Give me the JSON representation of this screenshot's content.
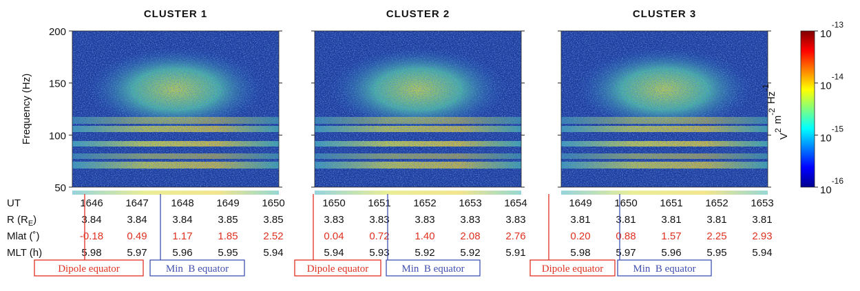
{
  "panels": [
    {
      "title": "CLUSTER 1",
      "ut": [
        1646,
        1647,
        1648,
        1649,
        1650
      ],
      "r": [
        "3.84",
        "3.84",
        "3.84",
        "3.85",
        "3.85"
      ],
      "mlat": [
        "-0.18",
        "0.49",
        "1.17",
        "1.85",
        "2.52"
      ],
      "mlt": [
        "5.98",
        "5.97",
        "5.96",
        "5.95",
        "5.94"
      ]
    },
    {
      "title": "CLUSTER 2",
      "ut": [
        1650,
        1651,
        1652,
        1653,
        1654
      ],
      "r": [
        "3.83",
        "3.83",
        "3.83",
        "3.83",
        "3.83"
      ],
      "mlat": [
        "0.04",
        "0.72",
        "1.40",
        "2.08",
        "2.76"
      ],
      "mlt": [
        "5.94",
        "5.93",
        "5.92",
        "5.92",
        "5.91"
      ]
    },
    {
      "title": "CLUSTER 3",
      "ut": [
        1649,
        1650,
        1651,
        1652,
        1653
      ],
      "r": [
        "3.81",
        "3.81",
        "3.81",
        "3.81",
        "3.81"
      ],
      "mlat": [
        "0.20",
        "0.88",
        "1.57",
        "2.25",
        "2.93"
      ],
      "mlt": [
        "5.98",
        "5.97",
        "5.96",
        "5.95",
        "5.94"
      ]
    }
  ],
  "row_labels": {
    "ut": "UT",
    "r": {
      "text": "R (R",
      "sub": "E",
      "after": ")"
    },
    "mlat": "Mlat (˚)",
    "mlt": "MLT (h)"
  },
  "y_axis": {
    "label": "Frequency (Hz)",
    "ylim": [
      50,
      200
    ],
    "yticks": [
      50,
      100,
      150,
      200
    ]
  },
  "colorbar": {
    "ticks": [
      {
        "base": "10",
        "exp": "-13"
      },
      {
        "base": "10",
        "exp": "-14"
      },
      {
        "base": "10",
        "exp": "-15"
      },
      {
        "base": "10",
        "exp": "-16"
      }
    ],
    "label": [
      {
        "base": "V",
        "sup": "2"
      },
      {
        "base": "m",
        "sup": "-2"
      },
      {
        "base": "Hz",
        "sup": "-1"
      }
    ]
  },
  "markers": {
    "dipole": "Dipole equator",
    "minb": "Min  B equator"
  }
}
